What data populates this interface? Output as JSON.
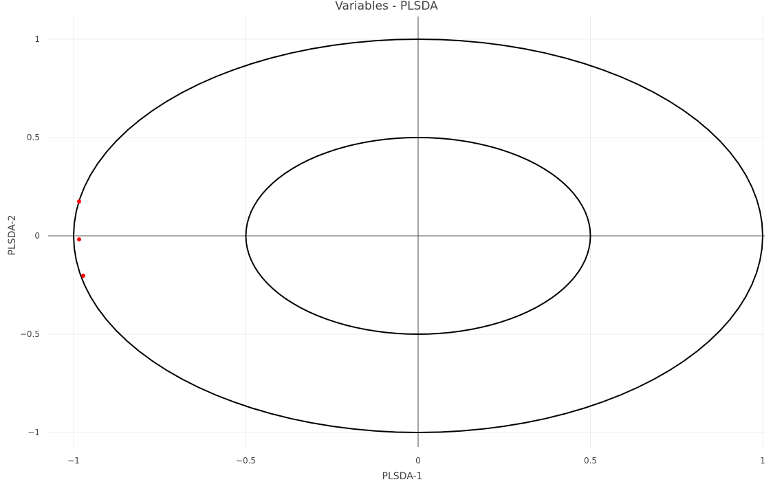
{
  "chart_data": {
    "type": "scatter",
    "title": "Variables - PLSDA",
    "xlabel": "PLSDA-1",
    "ylabel": "PLSDA-2",
    "xlim": [
      -1,
      1
    ],
    "ylim": [
      -1,
      1
    ],
    "grid": true,
    "x_ticks": [
      {
        "value": -1,
        "label": "−1"
      },
      {
        "value": -0.5,
        "label": "−0.5"
      },
      {
        "value": 0,
        "label": "0"
      },
      {
        "value": 0.5,
        "label": "0.5"
      },
      {
        "value": 1,
        "label": "1"
      }
    ],
    "y_ticks": [
      {
        "value": -1,
        "label": "−1"
      },
      {
        "value": -0.5,
        "label": "−0.5"
      },
      {
        "value": 0,
        "label": "0"
      },
      {
        "value": 0.5,
        "label": "0.5"
      },
      {
        "value": 1,
        "label": "1"
      }
    ],
    "circles": [
      {
        "radius": 1,
        "color": "#000000"
      },
      {
        "radius": 0.5,
        "color": "#000000"
      }
    ],
    "points": {
      "color": "#ff0000",
      "x": [
        -0.984,
        -0.984,
        -0.972
      ],
      "y": [
        0.175,
        -0.018,
        -0.203
      ]
    }
  }
}
